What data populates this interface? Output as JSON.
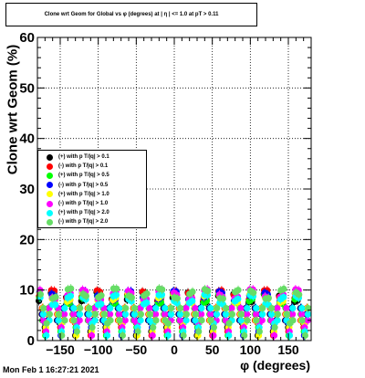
{
  "title": "Clone wrt Geom for Global vs φ (degrees) at | η | <= 1.0 at pT > 0.11",
  "timestamp": "Mon Feb  1 16:27:21 2021",
  "chart_data": {
    "type": "scatter",
    "xlabel": "φ (degrees)",
    "ylabel": "Clone wrt  Geom (%)",
    "xlim": [
      -180,
      180
    ],
    "ylim": [
      0,
      60
    ],
    "xticks": [
      -150,
      -100,
      -50,
      0,
      50,
      100,
      150
    ],
    "yticks": [
      0,
      10,
      20,
      30,
      40,
      50,
      60
    ],
    "grid": true,
    "legend_position": "left",
    "series": [
      {
        "name": "(+) with p T/|q| > 0.1",
        "color": "#000000",
        "offset": 0,
        "phase": 0.0
      },
      {
        "name": "(-) with p T/|q| > 0.1",
        "color": "#ff0000",
        "offset": 1,
        "phase": 0.6
      },
      {
        "name": "(+) with p T/|q| > 0.5",
        "color": "#00ff00",
        "offset": -1,
        "phase": 1.1
      },
      {
        "name": "(-) with p T/|q| > 0.5",
        "color": "#0000ff",
        "offset": 0.5,
        "phase": 1.7
      },
      {
        "name": "(+) with p T/|q| > 1.0",
        "color": "#ffff00",
        "offset": -0.5,
        "phase": 2.3
      },
      {
        "name": "(-) with p T/|q| > 1.0",
        "color": "#ff00ff",
        "offset": 1.5,
        "phase": 2.9
      },
      {
        "name": "(+) with p T/|q| > 2.0",
        "color": "#00ffff",
        "offset": -1.5,
        "phase": 3.5
      },
      {
        "name": "(-) with p T/|q| > 2.0",
        "color": "#66dd66",
        "offset": 2,
        "phase": 4.1
      }
    ]
  }
}
